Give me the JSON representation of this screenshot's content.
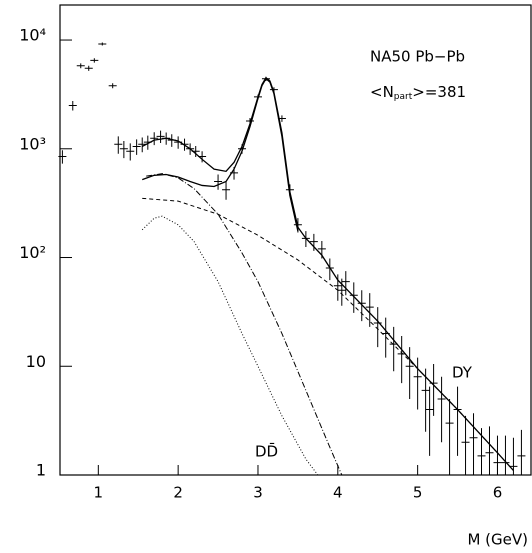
{
  "chart_data": {
    "type": "errorbar-log",
    "log_y": true,
    "xlim": [
      0.52,
      6.42
    ],
    "ylim": [
      1,
      21000
    ],
    "xticks": [
      1,
      2,
      3,
      4,
      5,
      6
    ],
    "yticks": [
      1,
      10,
      {
        "value": 100,
        "label": "10²"
      },
      {
        "value": 1000,
        "label": "10³"
      },
      {
        "value": 10000,
        "label": "10⁴"
      }
    ],
    "xlabel": "M (GeV)",
    "title": "NA50  Pb−Pb",
    "npart_label": {
      "prefix": "<N",
      "sub": "part",
      "suffix": ">=381"
    },
    "dy_label": "DY",
    "dd_label": "DD̄",
    "points": {
      "color": "#000000",
      "x": [
        0.55,
        0.68,
        0.78,
        0.88,
        0.95,
        1.05,
        1.18,
        1.25,
        1.32,
        1.4,
        1.48,
        1.55,
        1.62,
        1.7,
        1.78,
        1.85,
        1.92,
        2.0,
        2.08,
        2.15,
        2.22,
        2.3,
        2.5,
        2.6,
        2.7,
        2.8,
        2.9,
        3.0,
        3.1,
        3.2,
        3.3,
        3.4,
        3.5,
        3.6,
        3.7,
        3.8,
        3.9,
        4.0,
        4.05,
        4.1,
        4.2,
        4.3,
        4.4,
        4.5,
        4.6,
        4.7,
        4.8,
        4.9,
        5.0,
        5.1,
        5.15,
        5.2,
        5.3,
        5.4,
        5.5,
        5.6,
        5.7,
        5.8,
        5.9,
        6.0,
        6.1,
        6.2,
        6.3
      ],
      "values": [
        850,
        2500,
        5800,
        5500,
        6500,
        9200,
        3800,
        1100,
        1000,
        950,
        1050,
        1100,
        1150,
        1250,
        1300,
        1250,
        1200,
        1150,
        1100,
        1000,
        950,
        850,
        500,
        420,
        600,
        1000,
        1800,
        3000,
        4400,
        3500,
        1900,
        420,
        200,
        150,
        140,
        120,
        80,
        55,
        50,
        60,
        45,
        38,
        35,
        25,
        20,
        16,
        13,
        10,
        8,
        6,
        4,
        7,
        5,
        3,
        4,
        2,
        2.2,
        1.5,
        1.6,
        1.3,
        1.3,
        1.2,
        1.5
      ],
      "yerr": [
        120,
        250,
        300,
        300,
        300,
        300,
        200,
        200,
        180,
        170,
        170,
        170,
        170,
        170,
        170,
        160,
        160,
        150,
        140,
        120,
        110,
        100,
        80,
        80,
        80,
        100,
        120,
        150,
        200,
        180,
        130,
        50,
        30,
        25,
        25,
        22,
        18,
        15,
        14,
        15,
        14,
        12,
        12,
        10,
        8,
        7,
        6,
        5,
        4,
        3.5,
        2.5,
        3.5,
        3,
        2,
        2.5,
        1.5,
        1.5,
        1.2,
        1.2,
        1,
        1,
        1,
        1.1
      ]
    },
    "curves": [
      {
        "color": "#000000",
        "width": 1.3,
        "dash": "none",
        "x": [
          1.55,
          1.7,
          1.85,
          2.0,
          2.15,
          2.3,
          2.45,
          2.6,
          2.7,
          2.8,
          2.9,
          3.0,
          3.05,
          3.1,
          3.15,
          3.2,
          3.3,
          3.4,
          3.5,
          3.6,
          3.8,
          4.0,
          4.5,
          5.0,
          5.5,
          6.0,
          6.2
        ],
        "values": [
          1050,
          1200,
          1250,
          1180,
          1000,
          800,
          650,
          620,
          750,
          1050,
          1700,
          3000,
          3900,
          4500,
          4200,
          3300,
          1400,
          400,
          190,
          150,
          105,
          62,
          26,
          9.5,
          4,
          1.6,
          1.1
        ]
      },
      {
        "color": "#000000",
        "width": 1.3,
        "dash": "none",
        "x": [
          1.55,
          1.7,
          1.85,
          2.0,
          2.15,
          2.3,
          2.45,
          2.6,
          2.7,
          2.8,
          2.9,
          3.0,
          3.05,
          3.1,
          3.15,
          3.2,
          3.3,
          3.4,
          3.5
        ],
        "values": [
          520,
          570,
          580,
          550,
          500,
          460,
          450,
          500,
          650,
          950,
          1600,
          2900,
          3800,
          4400,
          4100,
          3200,
          1300,
          370,
          175
        ]
      },
      {
        "color": "#000000",
        "width": 1,
        "dash": "4 3",
        "x": [
          1.55,
          2.0,
          2.5,
          3.0,
          3.5,
          4.0,
          4.5,
          5.0,
          5.5,
          6.0,
          6.2
        ],
        "values": [
          350,
          330,
          250,
          160,
          95,
          50,
          22,
          9.5,
          4,
          1.6,
          1.1
        ]
      },
      {
        "color": "#000000",
        "width": 1,
        "dash": "6 2 1 2",
        "x": [
          1.6,
          1.8,
          2.0,
          2.2,
          2.5,
          2.8,
          3.0,
          3.3,
          3.6,
          3.9,
          4.05
        ],
        "values": [
          560,
          590,
          540,
          430,
          250,
          110,
          60,
          20,
          6,
          1.8,
          1
        ]
      },
      {
        "color": "#000000",
        "width": 1,
        "dash": "1 2",
        "x": [
          1.55,
          1.7,
          1.8,
          2.0,
          2.2,
          2.5,
          2.8,
          3.0,
          3.3,
          3.6,
          3.75
        ],
        "values": [
          180,
          230,
          240,
          200,
          140,
          60,
          20,
          10,
          3.5,
          1.4,
          1
        ]
      }
    ]
  }
}
